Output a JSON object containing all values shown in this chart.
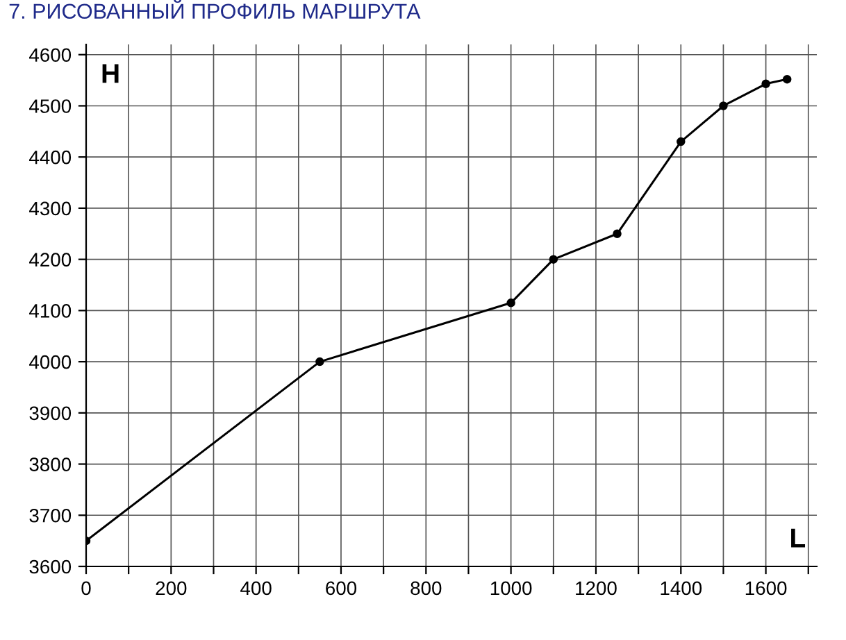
{
  "chart_data": {
    "type": "line",
    "title": "7. РИСОВАННЫЙ ПРОФИЛЬ МАРШРУТА",
    "xlabel": "L",
    "ylabel": "H",
    "x": [
      0,
      550,
      1000,
      1100,
      1250,
      1400,
      1500,
      1600,
      1650
    ],
    "series": [
      {
        "color": "#000000",
        "values": [
          3650,
          4000,
          4115,
          4200,
          4250,
          4430,
          4500,
          4543,
          4552
        ]
      }
    ],
    "xlim": [
      0,
      1720
    ],
    "ylim": [
      3600,
      4620
    ],
    "xticks": [
      0,
      {
        "value": 100,
        "label": null
      },
      200,
      {
        "value": 300,
        "label": null
      },
      400,
      {
        "value": 500,
        "label": null
      },
      600,
      {
        "value": 700,
        "label": null
      },
      800,
      {
        "value": 900,
        "label": null
      },
      1000,
      {
        "value": 1100,
        "label": null
      },
      1200,
      {
        "value": 1300,
        "label": null
      },
      1400,
      {
        "value": 1500,
        "label": null
      },
      1600,
      {
        "value": 1700,
        "label": null
      }
    ],
    "yticks": [
      3600,
      3700,
      3800,
      3900,
      4000,
      4100,
      4200,
      4300,
      4400,
      4500,
      4600
    ],
    "grid": true,
    "marker": "circle",
    "line_style": "solid"
  }
}
